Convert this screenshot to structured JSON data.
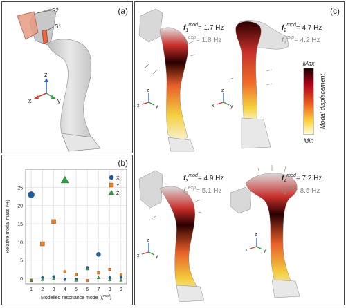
{
  "panels": {
    "a": "(a)",
    "b": "(b)",
    "c": "(c)"
  },
  "panel_a": {
    "s1": "S1",
    "s2": "S2"
  },
  "axes_triad": {
    "x": "x",
    "y": "y",
    "z": "z"
  },
  "chart_data": {
    "type": "scatter",
    "title": "",
    "ylabel": "Relative modal mass (%)",
    "xlabel_main": "Modelled resonance mode (",
    "xlabel_sym": "f",
    "xlabel_sub": "i",
    "xlabel_sup": "mod",
    "xlabel_end": ")",
    "x_ticks": [
      "1",
      "2",
      "3",
      "4",
      "5",
      "6",
      "7",
      "8",
      "9"
    ],
    "y_ticks": [
      "0",
      "5",
      "10",
      "15",
      "20",
      "25"
    ],
    "xlim": [
      0.5,
      9.5
    ],
    "ylim": [
      -1.5,
      30
    ],
    "grid": true,
    "legend_position": "top-right",
    "series": [
      {
        "name": "X",
        "marker": "circle",
        "color": "#1f5fa6",
        "x": [
          1,
          2,
          3,
          4,
          5,
          6,
          7,
          8,
          9
        ],
        "y": [
          23.0,
          0.2,
          0.5,
          -0.3,
          -0.2,
          3.0,
          6.6,
          0.2,
          0.3
        ]
      },
      {
        "name": "Y",
        "marker": "square",
        "color": "#e8822a",
        "x": [
          1,
          2,
          3,
          4,
          5,
          6,
          7,
          8,
          9
        ],
        "y": [
          -0.5,
          9.5,
          15.6,
          1.8,
          1.1,
          -0.6,
          1.5,
          2.5,
          1.1
        ]
      },
      {
        "name": "Z",
        "marker": "triangle",
        "color": "#2f9e44",
        "x": [
          1,
          2,
          3,
          4,
          5,
          6,
          7,
          8,
          9
        ],
        "y": [
          -0.6,
          -0.3,
          -0.1,
          27.0,
          -0.5,
          2.6,
          0.2,
          -0.4,
          -0.5
        ]
      }
    ]
  },
  "modes": [
    {
      "sym": "f",
      "sub": "1",
      "mod_sup": "mod",
      "mod_val": "= 1.7 Hz",
      "exp_sup": "exp",
      "exp_val": "= 1.8 Hz"
    },
    {
      "sym": "f",
      "sub": "2",
      "mod_sup": "mod",
      "mod_val": "= 4.7 Hz",
      "exp_sup": "exp",
      "exp_val": "= 4.2 Hz"
    },
    {
      "sym": "f",
      "sub": "3",
      "mod_sup": "mod",
      "mod_val": "= 4.9 Hz",
      "exp_sup": "exp",
      "exp_val": "= 5.1 Hz"
    },
    {
      "sym": "f",
      "sub": "4",
      "mod_sup": "mod",
      "mod_val": "= 7.2 Hz",
      "exp_sup": "exp",
      "exp_val": "= 8.5 Hz"
    }
  ],
  "colorbar": {
    "max": "Max",
    "min": "Min",
    "label": "Modal displacement"
  }
}
